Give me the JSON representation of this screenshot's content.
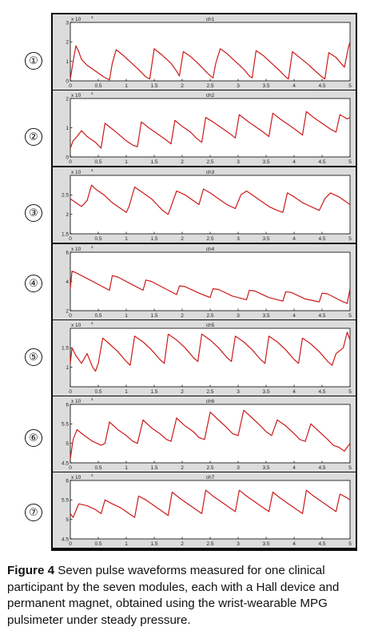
{
  "figure": {
    "caption_label": "Figure 4",
    "caption_text": " Seven pulse waveforms measured for one clinical participant by the seven modules, each with a Hall device and permanent magnet, obtained using the wrist-wearable MPG pulsimeter under steady pressure."
  },
  "colors": {
    "trace": "#cc1a1a",
    "panel_bg": "#dcdcdc",
    "plot_bg": "#ffffff",
    "frame": "#0b0b0b"
  },
  "chart_data": [
    {
      "type": "line",
      "marker": "①",
      "title": "ch1",
      "multiplier": "x 10",
      "exponent": "4",
      "x_ticks": [
        "0",
        "0.5",
        "1",
        "1.5",
        "2",
        "2.5",
        "3",
        "3.5",
        "4",
        "4.5",
        "5"
      ],
      "xlim": [
        0,
        5
      ],
      "ylim": [
        0,
        3
      ],
      "y_ticks": [
        {
          "v": 0,
          "label": "0"
        },
        {
          "v": 1,
          "label": "1"
        },
        {
          "v": 2,
          "label": "2"
        },
        {
          "v": 3,
          "label": "3"
        }
      ],
      "series": [
        {
          "x": [
            0,
            0.05,
            0.1,
            0.15,
            0.2,
            0.3,
            0.45,
            0.6,
            0.7,
            0.75,
            0.82,
            0.95,
            1.1,
            1.25,
            1.35,
            1.42,
            1.5,
            1.65,
            1.8,
            1.9,
            1.95,
            2.02,
            2.15,
            2.3,
            2.45,
            2.55,
            2.6,
            2.68,
            2.8,
            2.95,
            3.1,
            3.2,
            3.25,
            3.32,
            3.45,
            3.6,
            3.75,
            3.85,
            3.9,
            3.97,
            4.1,
            4.25,
            4.4,
            4.5,
            4.55,
            4.62,
            4.75,
            4.9,
            4.97,
            5
          ],
          "y": [
            0.1,
            1.0,
            1.8,
            1.5,
            1.1,
            0.8,
            0.5,
            0.2,
            0.05,
            0.9,
            1.6,
            1.3,
            0.9,
            0.5,
            0.2,
            0.1,
            1.65,
            1.3,
            0.9,
            0.5,
            0.25,
            1.5,
            1.25,
            0.85,
            0.4,
            0.15,
            0.9,
            1.65,
            1.4,
            1.0,
            0.6,
            0.25,
            0.15,
            1.55,
            1.3,
            0.9,
            0.5,
            0.2,
            0.1,
            1.5,
            1.2,
            0.85,
            0.45,
            0.2,
            0.1,
            1.45,
            1.2,
            0.7,
            1.7,
            2.0
          ]
        }
      ]
    },
    {
      "type": "line",
      "marker": "②",
      "title": "ch2",
      "multiplier": "x 10",
      "exponent": "4",
      "x_ticks": [
        "0",
        "0.5",
        "1",
        "1.5",
        "2",
        "2.5",
        "3",
        "3.5",
        "4",
        "4.5",
        "5"
      ],
      "xlim": [
        0,
        5
      ],
      "ylim": [
        0,
        2
      ],
      "y_ticks": [
        {
          "v": 0,
          "label": "0"
        },
        {
          "v": 1,
          "label": "1"
        },
        {
          "v": 2,
          "label": "2"
        }
      ],
      "series": [
        {
          "x": [
            0,
            0.05,
            0.12,
            0.2,
            0.3,
            0.45,
            0.55,
            0.62,
            0.72,
            0.85,
            1.0,
            1.12,
            1.2,
            1.27,
            1.4,
            1.55,
            1.7,
            1.8,
            1.87,
            2.0,
            2.15,
            2.25,
            2.35,
            2.42,
            2.55,
            2.7,
            2.85,
            2.95,
            3.02,
            3.15,
            3.3,
            3.45,
            3.55,
            3.62,
            3.75,
            3.9,
            4.05,
            4.15,
            4.22,
            4.35,
            4.5,
            4.65,
            4.75,
            4.82,
            4.95,
            5
          ],
          "y": [
            0.3,
            0.55,
            0.7,
            0.9,
            0.7,
            0.5,
            0.3,
            1.15,
            1.0,
            0.8,
            0.55,
            0.4,
            0.35,
            1.2,
            1.0,
            0.8,
            0.6,
            0.45,
            1.25,
            1.05,
            0.85,
            0.65,
            0.5,
            1.35,
            1.2,
            1.0,
            0.8,
            0.65,
            1.45,
            1.25,
            1.05,
            0.85,
            0.7,
            1.5,
            1.3,
            1.1,
            0.9,
            0.75,
            1.55,
            1.35,
            1.15,
            0.95,
            0.85,
            1.45,
            1.3,
            1.35
          ]
        }
      ]
    },
    {
      "type": "line",
      "marker": "③",
      "title": "ch3",
      "multiplier": "x 10",
      "exponent": "4",
      "x_ticks": [
        "0",
        "0.5",
        "1",
        "1.5",
        "2",
        "2.5",
        "3",
        "3.5",
        "4",
        "4.5",
        "5"
      ],
      "xlim": [
        0,
        5
      ],
      "ylim": [
        1.5,
        3
      ],
      "y_ticks": [
        {
          "v": 1.5,
          "label": "1.5"
        },
        {
          "v": 2,
          "label": "2"
        },
        {
          "v": 2.5,
          "label": "2.5"
        }
      ],
      "series": [
        {
          "x": [
            0,
            0.1,
            0.2,
            0.3,
            0.38,
            0.45,
            0.6,
            0.75,
            0.9,
            1.0,
            1.05,
            1.15,
            1.3,
            1.45,
            1.55,
            1.65,
            1.75,
            1.9,
            2.05,
            2.2,
            2.3,
            2.38,
            2.5,
            2.65,
            2.8,
            2.95,
            3.05,
            3.15,
            3.25,
            3.4,
            3.55,
            3.7,
            3.8,
            3.88,
            4.0,
            4.15,
            4.3,
            4.45,
            4.55,
            4.65,
            4.8,
            4.9,
            5
          ],
          "y": [
            2.4,
            2.3,
            2.2,
            2.35,
            2.75,
            2.65,
            2.5,
            2.3,
            2.15,
            2.05,
            2.2,
            2.7,
            2.55,
            2.4,
            2.25,
            2.1,
            2.0,
            2.6,
            2.5,
            2.35,
            2.25,
            2.65,
            2.55,
            2.4,
            2.25,
            2.15,
            2.5,
            2.6,
            2.5,
            2.35,
            2.2,
            2.1,
            2.05,
            2.55,
            2.45,
            2.3,
            2.2,
            2.1,
            2.4,
            2.55,
            2.45,
            2.35,
            2.25
          ]
        }
      ]
    },
    {
      "type": "line",
      "marker": "④",
      "title": "ch4",
      "multiplier": "x 10",
      "exponent": "4",
      "x_ticks": [
        "0",
        "0.5",
        "1",
        "1.5",
        "2",
        "2.5",
        "3",
        "3.5",
        "4",
        "4.5",
        "5"
      ],
      "xlim": [
        0,
        5
      ],
      "ylim": [
        2,
        6
      ],
      "y_ticks": [
        {
          "v": 2,
          "label": "2"
        },
        {
          "v": 4,
          "label": "4"
        },
        {
          "v": 6,
          "label": "6"
        }
      ],
      "series": [
        {
          "x": [
            0,
            0.03,
            0.1,
            0.3,
            0.55,
            0.7,
            0.75,
            0.85,
            1.1,
            1.3,
            1.35,
            1.45,
            1.7,
            1.9,
            1.95,
            2.05,
            2.3,
            2.5,
            2.55,
            2.65,
            2.9,
            3.15,
            3.2,
            3.3,
            3.55,
            3.8,
            3.85,
            3.95,
            4.2,
            4.45,
            4.5,
            4.6,
            4.85,
            4.95,
            5
          ],
          "y": [
            3.5,
            4.7,
            4.6,
            4.2,
            3.7,
            3.4,
            4.4,
            4.3,
            3.8,
            3.4,
            4.1,
            4.0,
            3.5,
            3.1,
            3.7,
            3.65,
            3.2,
            2.9,
            3.5,
            3.45,
            3.0,
            2.75,
            3.4,
            3.35,
            2.9,
            2.65,
            3.3,
            3.25,
            2.8,
            2.6,
            3.2,
            3.15,
            2.65,
            2.5,
            3.5
          ]
        }
      ]
    },
    {
      "type": "line",
      "marker": "⑤",
      "title": "ch5",
      "multiplier": "x 10",
      "exponent": "4",
      "x_ticks": [
        "0",
        "0.5",
        "1",
        "1.5",
        "2",
        "2.5",
        "3",
        "3.5",
        "4",
        "4.5",
        "5"
      ],
      "xlim": [
        0,
        5
      ],
      "ylim": [
        0.5,
        2
      ],
      "y_ticks": [
        {
          "v": 1,
          "label": "1"
        },
        {
          "v": 1.5,
          "label": "1.5"
        }
      ],
      "series": [
        {
          "x": [
            0,
            0.03,
            0.1,
            0.2,
            0.3,
            0.4,
            0.45,
            0.5,
            0.58,
            0.7,
            0.85,
            1.0,
            1.07,
            1.15,
            1.3,
            1.45,
            1.6,
            1.68,
            1.75,
            1.9,
            2.05,
            2.2,
            2.28,
            2.35,
            2.5,
            2.65,
            2.8,
            2.88,
            2.95,
            3.1,
            3.25,
            3.4,
            3.48,
            3.55,
            3.7,
            3.85,
            4.0,
            4.08,
            4.15,
            4.3,
            4.45,
            4.6,
            4.68,
            4.75,
            4.88,
            4.95,
            5
          ],
          "y": [
            1.1,
            1.5,
            1.3,
            1.1,
            1.35,
            1.0,
            0.9,
            1.1,
            1.75,
            1.6,
            1.4,
            1.15,
            1.05,
            1.8,
            1.65,
            1.45,
            1.2,
            1.1,
            1.85,
            1.7,
            1.5,
            1.25,
            1.15,
            1.85,
            1.7,
            1.5,
            1.25,
            1.15,
            1.8,
            1.65,
            1.45,
            1.2,
            1.1,
            1.8,
            1.65,
            1.45,
            1.2,
            1.1,
            1.75,
            1.6,
            1.4,
            1.15,
            1.05,
            1.35,
            1.5,
            1.9,
            1.7
          ]
        }
      ]
    },
    {
      "type": "line",
      "marker": "⑥",
      "title": "ch6",
      "multiplier": "x 10",
      "exponent": "4",
      "x_ticks": [
        "0",
        "0.5",
        "1",
        "1.5",
        "2",
        "2.5",
        "3",
        "3.5",
        "4",
        "4.5",
        "5"
      ],
      "xlim": [
        0,
        5
      ],
      "ylim": [
        4.5,
        6
      ],
      "y_ticks": [
        {
          "v": 4.5,
          "label": "4.5"
        },
        {
          "v": 5,
          "label": "5"
        },
        {
          "v": 5.5,
          "label": "5.5"
        },
        {
          "v": 6,
          "label": "6"
        }
      ],
      "series": [
        {
          "x": [
            0,
            0.05,
            0.12,
            0.25,
            0.4,
            0.55,
            0.62,
            0.7,
            0.85,
            1.0,
            1.12,
            1.2,
            1.3,
            1.45,
            1.6,
            1.72,
            1.8,
            1.9,
            2.05,
            2.2,
            2.3,
            2.4,
            2.5,
            2.65,
            2.8,
            2.9,
            3.0,
            3.1,
            3.25,
            3.4,
            3.5,
            3.6,
            3.7,
            3.85,
            4.0,
            4.1,
            4.2,
            4.3,
            4.45,
            4.6,
            4.7,
            4.8,
            4.9,
            5
          ],
          "y": [
            4.6,
            5.1,
            5.35,
            5.2,
            5.05,
            4.95,
            5.0,
            5.55,
            5.35,
            5.2,
            5.05,
            5.0,
            5.6,
            5.4,
            5.25,
            5.1,
            5.05,
            5.65,
            5.45,
            5.3,
            5.15,
            5.1,
            5.8,
            5.6,
            5.4,
            5.25,
            5.2,
            5.85,
            5.65,
            5.45,
            5.3,
            5.2,
            5.6,
            5.45,
            5.25,
            5.1,
            5.05,
            5.5,
            5.3,
            5.1,
            4.95,
            4.9,
            4.8,
            5.0
          ]
        }
      ]
    },
    {
      "type": "line",
      "marker": "⑦",
      "title": "ch7",
      "multiplier": "x 10",
      "exponent": "4",
      "x_ticks": [
        "0",
        "0.5",
        "1",
        "1.5",
        "2",
        "2.5",
        "3",
        "3.5",
        "4",
        "4.5",
        "5"
      ],
      "xlim": [
        0,
        5
      ],
      "ylim": [
        4.5,
        6
      ],
      "y_ticks": [
        {
          "v": 4.5,
          "label": "4.5"
        },
        {
          "v": 5,
          "label": "5"
        },
        {
          "v": 5.5,
          "label": "5.5"
        },
        {
          "v": 6,
          "label": "6"
        }
      ],
      "series": [
        {
          "x": [
            0,
            0.05,
            0.15,
            0.3,
            0.45,
            0.55,
            0.62,
            0.75,
            0.9,
            1.05,
            1.15,
            1.22,
            1.35,
            1.5,
            1.65,
            1.75,
            1.82,
            1.95,
            2.1,
            2.25,
            2.35,
            2.42,
            2.55,
            2.7,
            2.85,
            2.95,
            3.02,
            3.15,
            3.3,
            3.45,
            3.55,
            3.62,
            3.75,
            3.9,
            4.05,
            4.15,
            4.22,
            4.35,
            4.5,
            4.65,
            4.75,
            4.82,
            4.95,
            5
          ],
          "y": [
            5.15,
            5.05,
            5.4,
            5.35,
            5.25,
            5.15,
            5.5,
            5.4,
            5.3,
            5.15,
            5.05,
            5.6,
            5.5,
            5.35,
            5.2,
            5.1,
            5.7,
            5.55,
            5.4,
            5.25,
            5.15,
            5.75,
            5.6,
            5.45,
            5.3,
            5.2,
            5.75,
            5.6,
            5.45,
            5.3,
            5.2,
            5.7,
            5.55,
            5.4,
            5.25,
            5.15,
            5.75,
            5.6,
            5.45,
            5.3,
            5.2,
            5.65,
            5.55,
            5.5
          ]
        }
      ]
    }
  ]
}
